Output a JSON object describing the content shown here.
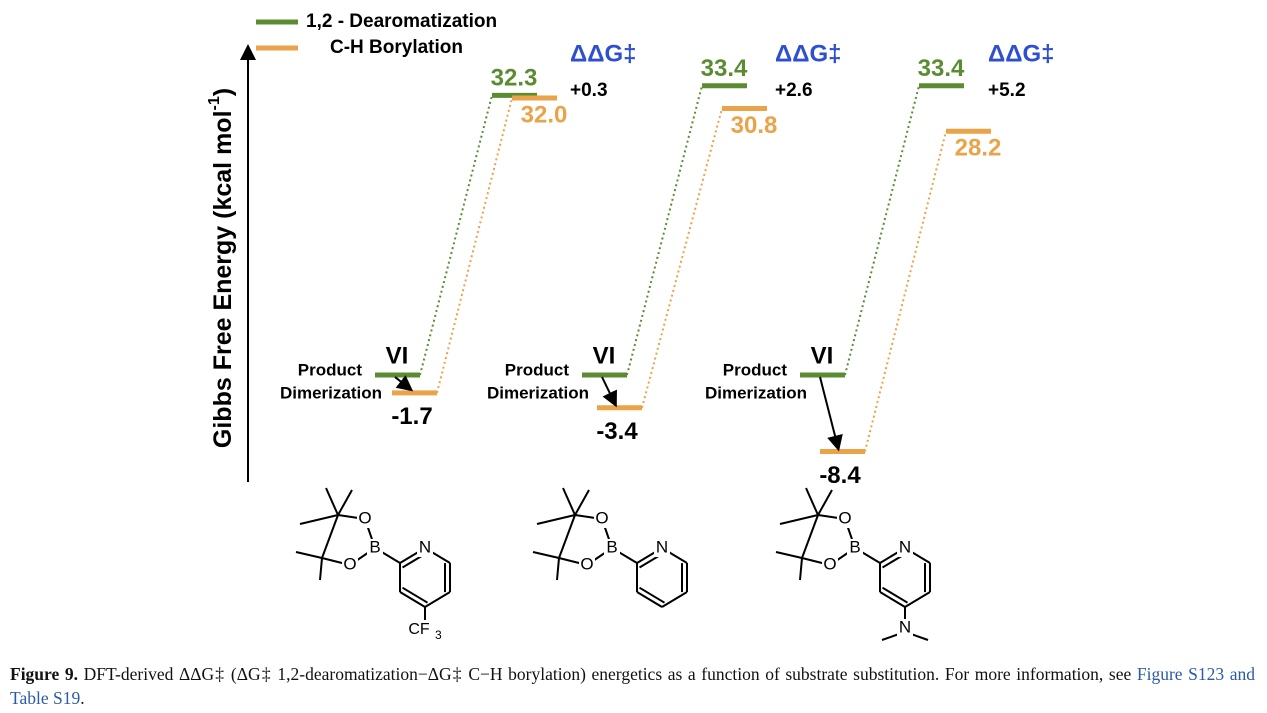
{
  "legend": [
    {
      "label": "1,2 - Dearomatization",
      "color": "#5b8c32"
    },
    {
      "label": "C-H Borylation",
      "color": "#eaa348"
    }
  ],
  "axis_label": {
    "text": "Gibbs Free Energy (kcal mol",
    "sup": "-1",
    "close": ")"
  },
  "panels": [
    {
      "ts_dearom": "32.3",
      "ts_boryl": "32.0",
      "ddg_label": "ΔΔG‡",
      "ddg": "+0.3",
      "product_label": [
        "Product",
        "Dimerization"
      ],
      "intermediate": "VI",
      "product": "-1.7"
    },
    {
      "ts_dearom": "33.4",
      "ts_boryl": "30.8",
      "ddg_label": "ΔΔG‡",
      "ddg": "+2.6",
      "product_label": [
        "Product",
        "Dimerization"
      ],
      "intermediate": "VI",
      "product": "-3.4"
    },
    {
      "ts_dearom": "33.4",
      "ts_boryl": "28.2",
      "ddg_label": "ΔΔG‡",
      "ddg": "+5.2",
      "product_label": [
        "Product",
        "Dimerization"
      ],
      "intermediate": "VI",
      "product": "-8.4"
    }
  ],
  "structures": [
    {
      "atoms": [
        "O",
        "B",
        "O",
        "N"
      ],
      "substituent": "CF",
      "substituent_sub": "3"
    },
    {
      "atoms": [
        "O",
        "B",
        "O",
        "N"
      ]
    },
    {
      "atoms": [
        "O",
        "B",
        "O",
        "N"
      ],
      "substituent": "N"
    }
  ],
  "caption": {
    "label": "Figure 9.",
    "text": " DFT-derived ΔΔG‡ (ΔG‡ 1,2-dearomatization−ΔG‡ C−H borylation) energetics as a function of substrate substitution. For more information, see ",
    "link": "Figure S123 and Table S19",
    "end": "."
  }
}
